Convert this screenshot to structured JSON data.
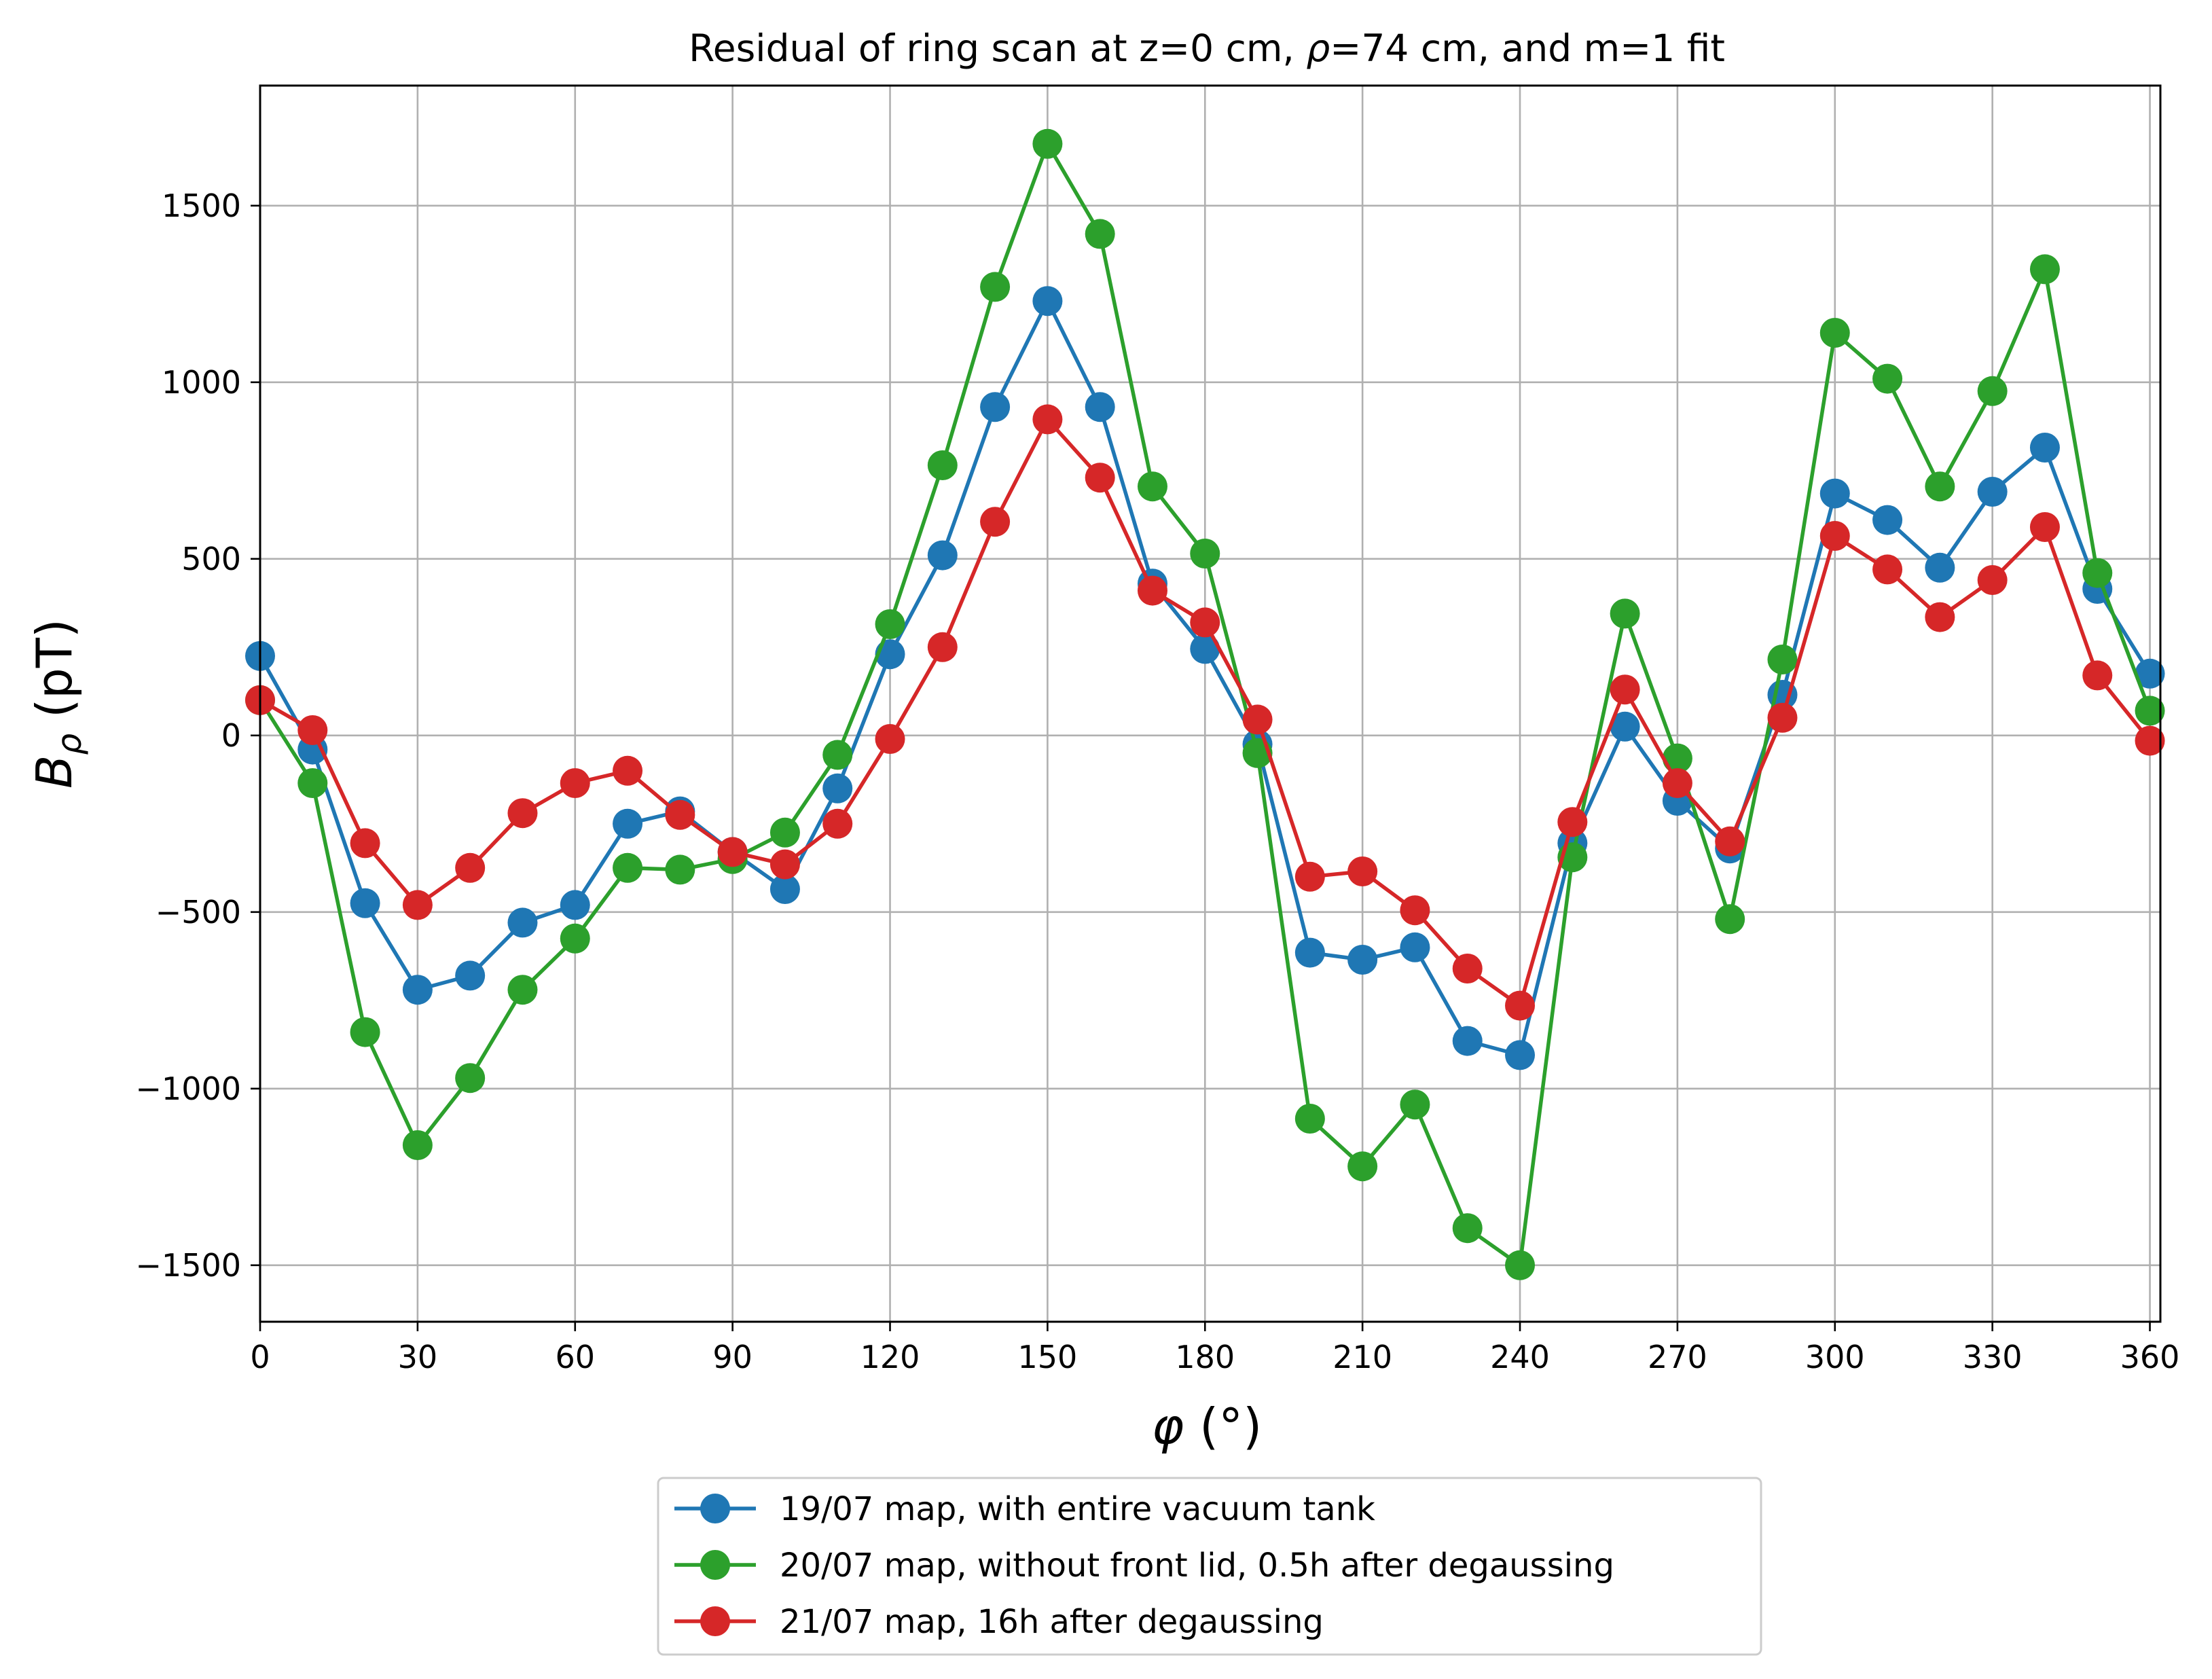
{
  "chart_data": {
    "type": "line",
    "title_prefix": "Residual of ring scan at z=0 cm, ",
    "title_symbol": "ρ",
    "title_suffix": "=74 cm, and m=1 fit",
    "xlabel_symbol": "φ",
    "xlabel_unit": " (°)",
    "ylabel_symbol": "B",
    "ylabel_subscript": "ρ",
    "ylabel_unit": " (pT)",
    "xlim": [
      0,
      362
    ],
    "ylim": [
      -1660,
      1840
    ],
    "xticks": [
      0,
      30,
      60,
      90,
      120,
      150,
      180,
      210,
      240,
      270,
      300,
      330,
      360
    ],
    "yticks": [
      -1500,
      -1000,
      -500,
      0,
      500,
      1000,
      1500
    ],
    "ytick_labels": [
      "−1500",
      "−1000",
      "−500",
      "0",
      "500",
      "1000",
      "1500"
    ],
    "grid": true,
    "legend_position": "below plot, centered",
    "x": [
      0,
      10,
      20,
      30,
      40,
      50,
      60,
      70,
      80,
      90,
      100,
      110,
      120,
      130,
      140,
      150,
      160,
      170,
      180,
      190,
      200,
      210,
      220,
      230,
      240,
      250,
      260,
      270,
      280,
      290,
      300,
      310,
      320,
      330,
      340,
      350,
      360
    ],
    "series": [
      {
        "name": "19/07 map, with entire vacuum tank",
        "color": "#1f77b4",
        "values": [
          225,
          -40,
          -475,
          -720,
          -680,
          -530,
          -480,
          -250,
          -215,
          -330,
          -435,
          -150,
          230,
          510,
          930,
          1230,
          930,
          430,
          245,
          -25,
          -615,
          -635,
          -600,
          -865,
          -905,
          -305,
          25,
          -185,
          -320,
          115,
          685,
          610,
          475,
          690,
          815,
          415,
          175
        ]
      },
      {
        "name": "20/07 map, without front lid, 0.5h after degaussing",
        "color": "#2ca02c",
        "values": [
          100,
          -135,
          -840,
          -1160,
          -970,
          -720,
          -575,
          -375,
          -380,
          -350,
          -275,
          -55,
          315,
          765,
          1270,
          1675,
          1420,
          705,
          515,
          -50,
          -1085,
          -1220,
          -1045,
          -1395,
          -1500,
          -345,
          345,
          -65,
          -520,
          215,
          1140,
          1010,
          705,
          975,
          1320,
          460,
          70
        ]
      },
      {
        "name": "21/07 map, 16h after degaussing",
        "color": "#d62728",
        "values": [
          100,
          15,
          -305,
          -480,
          -375,
          -220,
          -135,
          -100,
          -225,
          -330,
          -365,
          -250,
          -10,
          250,
          605,
          895,
          730,
          410,
          320,
          45,
          -400,
          -385,
          -495,
          -660,
          -765,
          -245,
          130,
          -135,
          -300,
          50,
          565,
          470,
          335,
          440,
          590,
          170,
          -15
        ]
      }
    ]
  }
}
